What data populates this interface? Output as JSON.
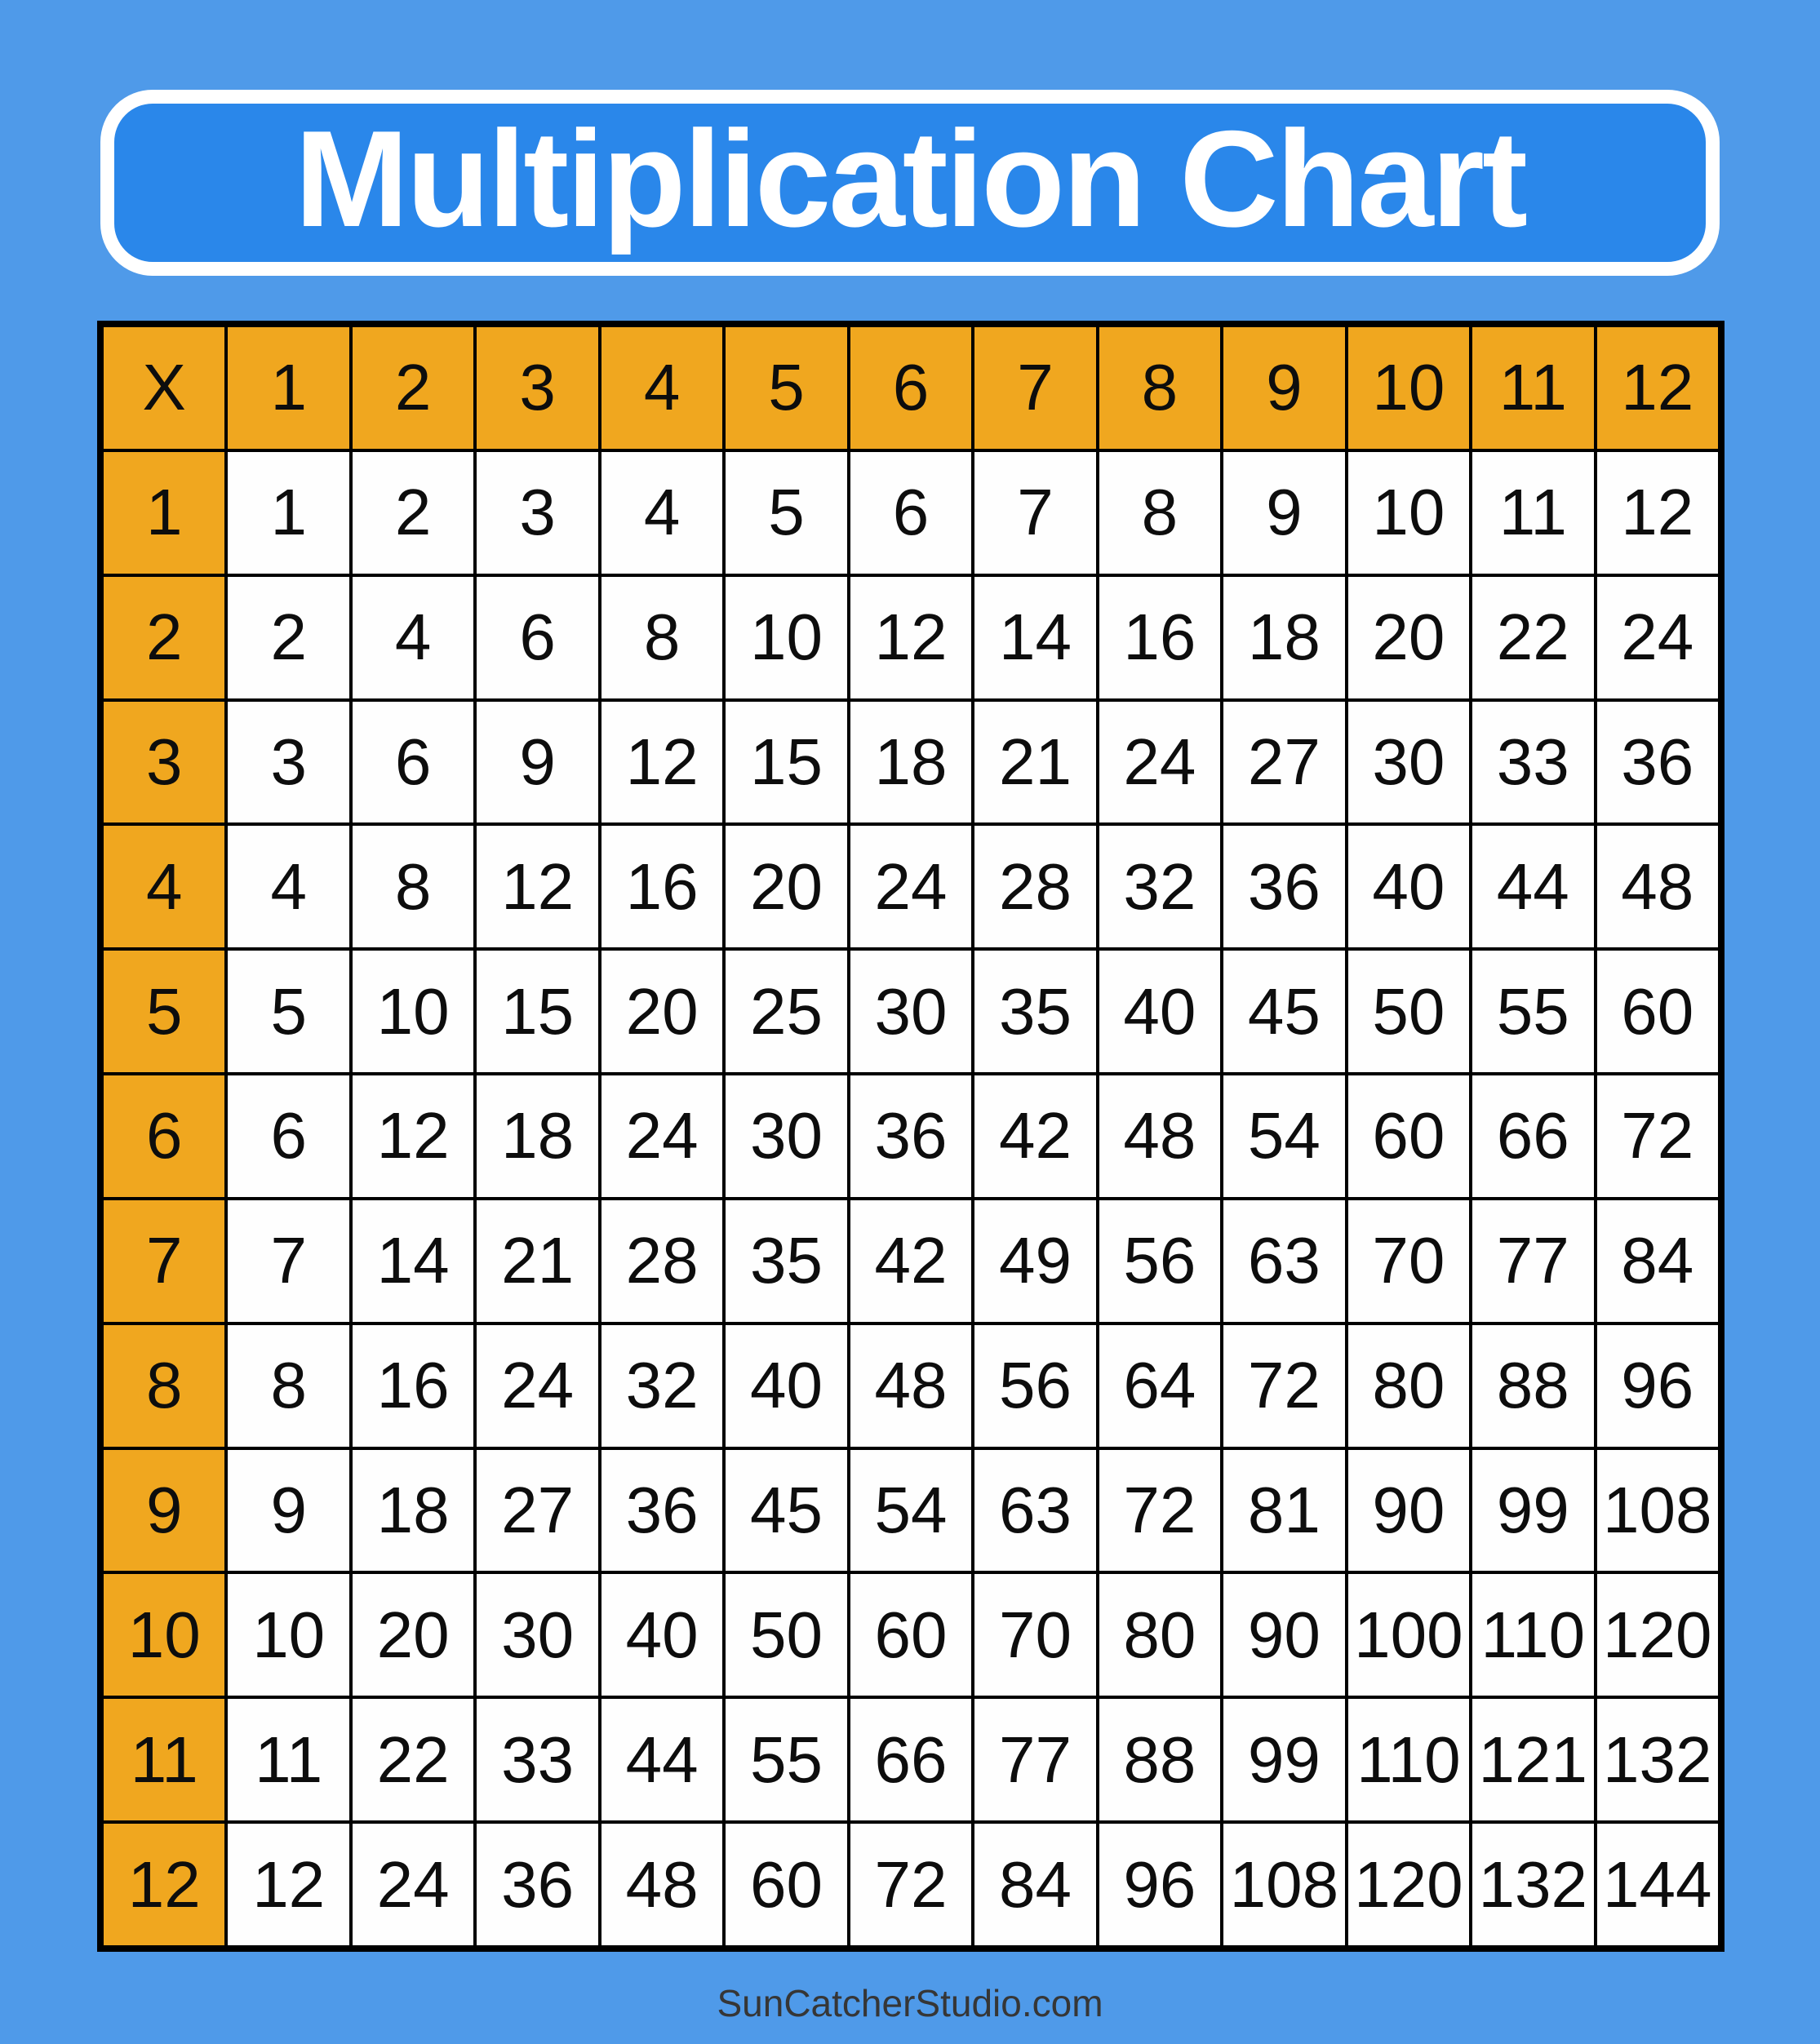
{
  "title": "Multiplication Chart",
  "footer": "SunCatcherStudio.com",
  "colors": {
    "background": "#4f9ae9",
    "banner_fill": "#2a87ea",
    "banner_border": "#ffffff",
    "title_color": "#ffffff",
    "header_fill": "#f0a71f",
    "cell_fill": "#fefefe",
    "grid_line": "#000000",
    "cell_text": "#0d0d0d",
    "footer_color": "#363636"
  },
  "chart_data": {
    "type": "table",
    "title": "Multiplication Chart",
    "operator": "X",
    "column_headers": [
      1,
      2,
      3,
      4,
      5,
      6,
      7,
      8,
      9,
      10,
      11,
      12
    ],
    "row_headers": [
      1,
      2,
      3,
      4,
      5,
      6,
      7,
      8,
      9,
      10,
      11,
      12
    ],
    "rows": [
      [
        1,
        2,
        3,
        4,
        5,
        6,
        7,
        8,
        9,
        10,
        11,
        12
      ],
      [
        2,
        4,
        6,
        8,
        10,
        12,
        14,
        16,
        18,
        20,
        22,
        24
      ],
      [
        3,
        6,
        9,
        12,
        15,
        18,
        21,
        24,
        27,
        30,
        33,
        36
      ],
      [
        4,
        8,
        12,
        16,
        20,
        24,
        28,
        32,
        36,
        40,
        44,
        48
      ],
      [
        5,
        10,
        15,
        20,
        25,
        30,
        35,
        40,
        45,
        50,
        55,
        60
      ],
      [
        6,
        12,
        18,
        24,
        30,
        36,
        42,
        48,
        54,
        60,
        66,
        72
      ],
      [
        7,
        14,
        21,
        28,
        35,
        42,
        49,
        56,
        63,
        70,
        77,
        84
      ],
      [
        8,
        16,
        24,
        32,
        40,
        48,
        56,
        64,
        72,
        80,
        88,
        96
      ],
      [
        9,
        18,
        27,
        36,
        45,
        54,
        63,
        72,
        81,
        90,
        99,
        108
      ],
      [
        10,
        20,
        30,
        40,
        50,
        60,
        70,
        80,
        90,
        100,
        110,
        120
      ],
      [
        11,
        22,
        33,
        44,
        55,
        66,
        77,
        88,
        99,
        110,
        121,
        132
      ],
      [
        12,
        24,
        36,
        48,
        60,
        72,
        84,
        96,
        108,
        120,
        132,
        144
      ]
    ]
  }
}
